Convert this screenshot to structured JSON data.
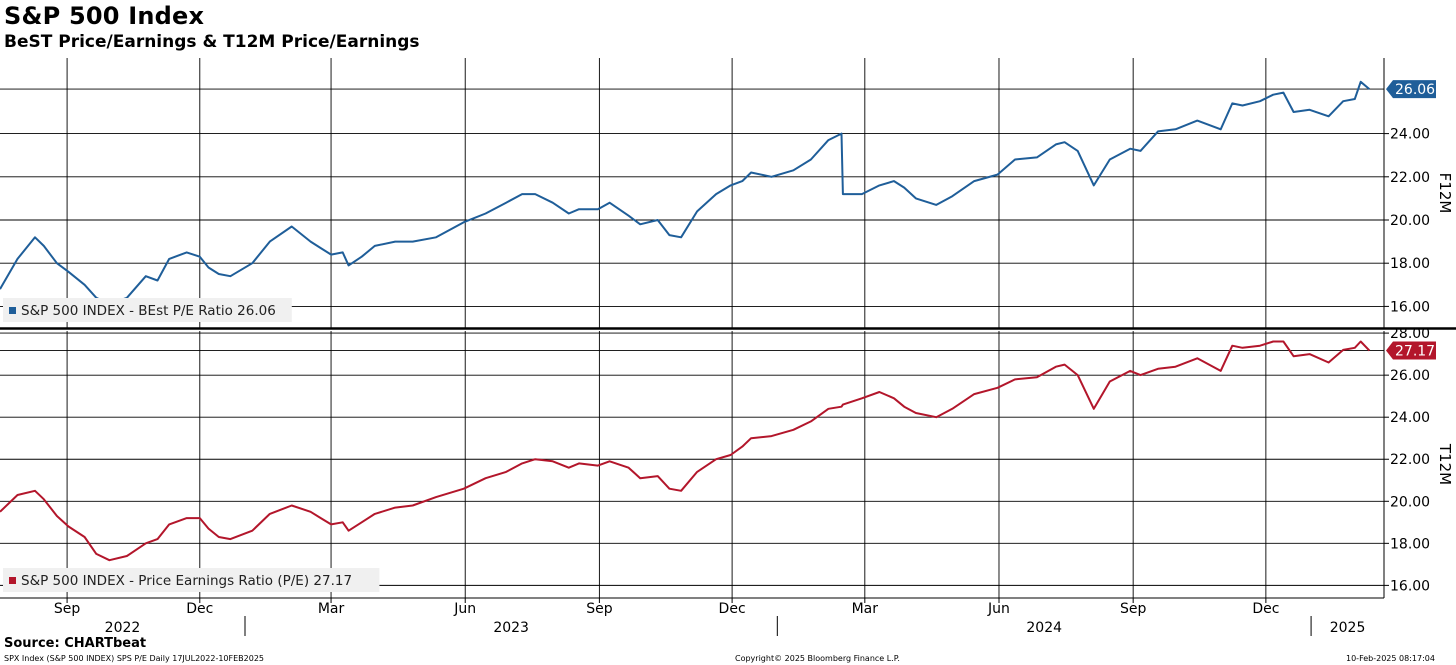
{
  "header": {
    "title": "S&P 500 Index",
    "subtitle": "BeST Price/Earnings & T12M Price/Earnings"
  },
  "footer": {
    "source": "Source: CHARTbeat",
    "left": "SPX Index (S&P 500 INDEX) SPS P/E  Daily 17JUL2022-10FEB2025",
    "middle": "Copyright© 2025 Bloomberg Finance L.P.",
    "right": "10-Feb-2025 08:17:04"
  },
  "colors": {
    "f12m": "#1f5e99",
    "t12m": "#b3162b",
    "grid": "#000000"
  },
  "chart_data": [
    {
      "type": "line",
      "axis_label": "F12M",
      "ylim": [
        15,
        27.5
      ],
      "yticks": [
        "16.00",
        "18.00",
        "20.00",
        "22.00",
        "24.00"
      ],
      "last_value_label": "26.06",
      "legend": "S&P 500 INDEX - BEst P/E Ratio 26.06",
      "legend_position": "bottom-left",
      "grid": true,
      "series": [
        {
          "name": "S&P 500 INDEX - BEst P/E Ratio",
          "x": [
            "2022-07-17",
            "2022-07-29",
            "2022-08-10",
            "2022-08-16",
            "2022-08-25",
            "2022-09-02",
            "2022-09-13",
            "2022-09-21",
            "2022-09-30",
            "2022-10-12",
            "2022-10-25",
            "2022-11-02",
            "2022-11-10",
            "2022-11-22",
            "2022-12-01",
            "2022-12-07",
            "2022-12-14",
            "2022-12-22",
            "2023-01-06",
            "2023-01-18",
            "2023-02-02",
            "2023-02-15",
            "2023-02-22",
            "2023-03-01",
            "2023-03-09",
            "2023-03-13",
            "2023-03-22",
            "2023-03-31",
            "2023-04-14",
            "2023-04-26",
            "2023-05-12",
            "2023-05-31",
            "2023-06-15",
            "2023-06-29",
            "2023-07-10",
            "2023-07-19",
            "2023-07-31",
            "2023-08-11",
            "2023-08-18",
            "2023-08-31",
            "2023-09-08",
            "2023-09-21",
            "2023-09-29",
            "2023-10-11",
            "2023-10-19",
            "2023-10-27",
            "2023-11-07",
            "2023-11-20",
            "2023-11-30",
            "2023-12-08",
            "2023-12-14",
            "2023-12-28",
            "2024-01-12",
            "2024-01-24",
            "2024-02-05",
            "2024-02-14",
            "2024-02-15",
            "2024-02-28",
            "2024-03-11",
            "2024-03-21",
            "2024-03-28",
            "2024-04-05",
            "2024-04-19",
            "2024-04-30",
            "2024-05-15",
            "2024-05-31",
            "2024-06-12",
            "2024-06-27",
            "2024-07-10",
            "2024-07-16",
            "2024-07-25",
            "2024-08-05",
            "2024-08-16",
            "2024-08-30",
            "2024-09-06",
            "2024-09-18",
            "2024-09-30",
            "2024-10-15",
            "2024-10-31",
            "2024-11-08",
            "2024-11-15",
            "2024-11-27",
            "2024-12-06",
            "2024-12-13",
            "2024-12-20",
            "2024-12-31",
            "2025-01-13",
            "2025-01-23",
            "2025-01-31",
            "2025-02-04",
            "2025-02-10"
          ],
          "values": [
            16.8,
            18.2,
            19.2,
            18.8,
            18.0,
            17.6,
            17.0,
            16.4,
            16.1,
            16.4,
            17.4,
            17.2,
            18.2,
            18.5,
            18.3,
            17.8,
            17.5,
            17.4,
            18.0,
            19.0,
            19.7,
            19.0,
            18.7,
            18.4,
            18.5,
            17.9,
            18.3,
            18.8,
            19.0,
            19.0,
            19.2,
            19.9,
            20.3,
            20.8,
            21.2,
            21.2,
            20.8,
            20.3,
            20.5,
            20.5,
            20.8,
            20.2,
            19.8,
            20.0,
            19.3,
            19.2,
            20.4,
            21.2,
            21.6,
            21.8,
            22.2,
            22.0,
            22.3,
            22.8,
            23.7,
            24.0,
            21.2,
            21.2,
            21.6,
            21.8,
            21.5,
            21.0,
            20.7,
            21.1,
            21.8,
            22.1,
            22.8,
            22.9,
            23.5,
            23.6,
            23.2,
            21.6,
            22.8,
            23.3,
            23.2,
            24.1,
            24.2,
            24.6,
            24.2,
            25.4,
            25.3,
            25.5,
            25.8,
            25.9,
            25.0,
            25.1,
            24.8,
            25.5,
            25.6,
            26.4,
            26.06
          ]
        }
      ]
    },
    {
      "type": "line",
      "axis_label": "T12M",
      "ylim": [
        15.4,
        28.1
      ],
      "yticks": [
        "16.00",
        "18.00",
        "20.00",
        "22.00",
        "24.00",
        "26.00",
        "28.00"
      ],
      "last_value_label": "27.17",
      "legend": "S&P 500 INDEX - Price Earnings Ratio (P/E) 27.17",
      "legend_position": "bottom-left",
      "grid": true,
      "series": [
        {
          "name": "S&P 500 INDEX - Price Earnings Ratio (P/E)",
          "x": [
            "2022-07-17",
            "2022-07-29",
            "2022-08-10",
            "2022-08-16",
            "2022-08-25",
            "2022-09-02",
            "2022-09-13",
            "2022-09-21",
            "2022-09-30",
            "2022-10-12",
            "2022-10-25",
            "2022-11-02",
            "2022-11-10",
            "2022-11-22",
            "2022-12-01",
            "2022-12-07",
            "2022-12-14",
            "2022-12-22",
            "2023-01-06",
            "2023-01-18",
            "2023-02-02",
            "2023-02-15",
            "2023-02-22",
            "2023-03-01",
            "2023-03-09",
            "2023-03-13",
            "2023-03-22",
            "2023-03-31",
            "2023-04-14",
            "2023-04-26",
            "2023-05-12",
            "2023-05-31",
            "2023-06-15",
            "2023-06-29",
            "2023-07-10",
            "2023-07-19",
            "2023-07-31",
            "2023-08-11",
            "2023-08-18",
            "2023-08-31",
            "2023-09-08",
            "2023-09-21",
            "2023-09-29",
            "2023-10-11",
            "2023-10-19",
            "2023-10-27",
            "2023-11-07",
            "2023-11-20",
            "2023-11-30",
            "2023-12-08",
            "2023-12-14",
            "2023-12-28",
            "2024-01-12",
            "2024-01-24",
            "2024-02-05",
            "2024-02-14",
            "2024-02-15",
            "2024-02-28",
            "2024-03-11",
            "2024-03-21",
            "2024-03-28",
            "2024-04-05",
            "2024-04-19",
            "2024-04-30",
            "2024-05-15",
            "2024-05-31",
            "2024-06-12",
            "2024-06-27",
            "2024-07-10",
            "2024-07-16",
            "2024-07-25",
            "2024-08-05",
            "2024-08-16",
            "2024-08-30",
            "2024-09-06",
            "2024-09-18",
            "2024-09-30",
            "2024-10-15",
            "2024-10-31",
            "2024-11-08",
            "2024-11-15",
            "2024-11-27",
            "2024-12-06",
            "2024-12-13",
            "2024-12-20",
            "2024-12-31",
            "2025-01-13",
            "2025-01-23",
            "2025-01-31",
            "2025-02-04",
            "2025-02-10"
          ],
          "values": [
            19.5,
            20.3,
            20.5,
            20.1,
            19.3,
            18.8,
            18.3,
            17.5,
            17.2,
            17.4,
            18.0,
            18.2,
            18.9,
            19.2,
            19.2,
            18.7,
            18.3,
            18.2,
            18.6,
            19.4,
            19.8,
            19.5,
            19.2,
            18.9,
            19.0,
            18.6,
            19.0,
            19.4,
            19.7,
            19.8,
            20.2,
            20.6,
            21.1,
            21.4,
            21.8,
            22.0,
            21.9,
            21.6,
            21.8,
            21.7,
            21.9,
            21.6,
            21.1,
            21.2,
            20.6,
            20.5,
            21.4,
            22.0,
            22.2,
            22.6,
            23.0,
            23.1,
            23.4,
            23.8,
            24.4,
            24.5,
            24.6,
            24.9,
            25.2,
            24.9,
            24.5,
            24.2,
            24.0,
            24.4,
            25.1,
            25.4,
            25.8,
            25.9,
            26.4,
            26.5,
            26.0,
            24.4,
            25.7,
            26.2,
            26.0,
            26.3,
            26.4,
            26.8,
            26.2,
            27.4,
            27.3,
            27.4,
            27.6,
            27.6,
            26.9,
            27.0,
            26.6,
            27.2,
            27.3,
            27.6,
            27.17
          ]
        }
      ]
    }
  ],
  "time_axis": {
    "month_ticks": [
      {
        "date": "2022-09-01",
        "label": "Sep"
      },
      {
        "date": "2022-12-01",
        "label": "Dec"
      },
      {
        "date": "2023-03-01",
        "label": "Mar"
      },
      {
        "date": "2023-06-01",
        "label": "Jun"
      },
      {
        "date": "2023-09-01",
        "label": "Sep"
      },
      {
        "date": "2023-12-01",
        "label": "Dec"
      },
      {
        "date": "2024-03-01",
        "label": "Mar"
      },
      {
        "date": "2024-06-01",
        "label": "Jun"
      },
      {
        "date": "2024-09-01",
        "label": "Sep"
      },
      {
        "date": "2024-12-01",
        "label": "Dec"
      }
    ],
    "year_labels": [
      {
        "year": "2022",
        "from": "2022-07-17",
        "to": "2023-01-01"
      },
      {
        "year": "2023",
        "from": "2023-01-01",
        "to": "2024-01-01"
      },
      {
        "year": "2024",
        "from": "2024-01-01",
        "to": "2025-01-01"
      },
      {
        "year": "2025",
        "from": "2025-01-01",
        "to": "2025-02-20"
      }
    ],
    "range": [
      "2022-07-17",
      "2025-02-20"
    ]
  }
}
